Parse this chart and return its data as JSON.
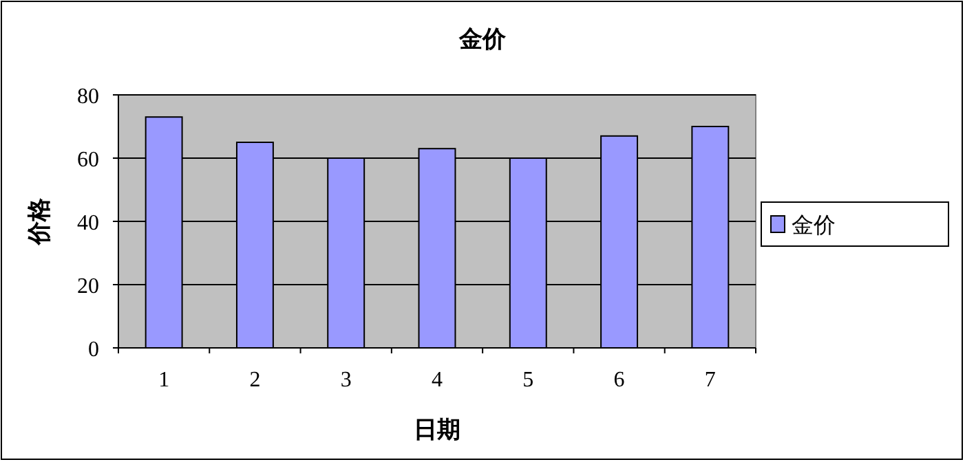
{
  "chart_data": {
    "type": "bar",
    "title": "金价",
    "xlabel": "日期",
    "ylabel": "价格",
    "categories": [
      "1",
      "2",
      "3",
      "4",
      "5",
      "6",
      "7"
    ],
    "series": [
      {
        "name": "金价",
        "color": "#9999ff",
        "values": [
          73,
          65,
          60,
          63,
          60,
          67,
          70
        ]
      }
    ],
    "ylim": [
      0,
      80
    ],
    "yticks": [
      0,
      20,
      40,
      60,
      80
    ],
    "grid": "y",
    "legend": "right"
  }
}
